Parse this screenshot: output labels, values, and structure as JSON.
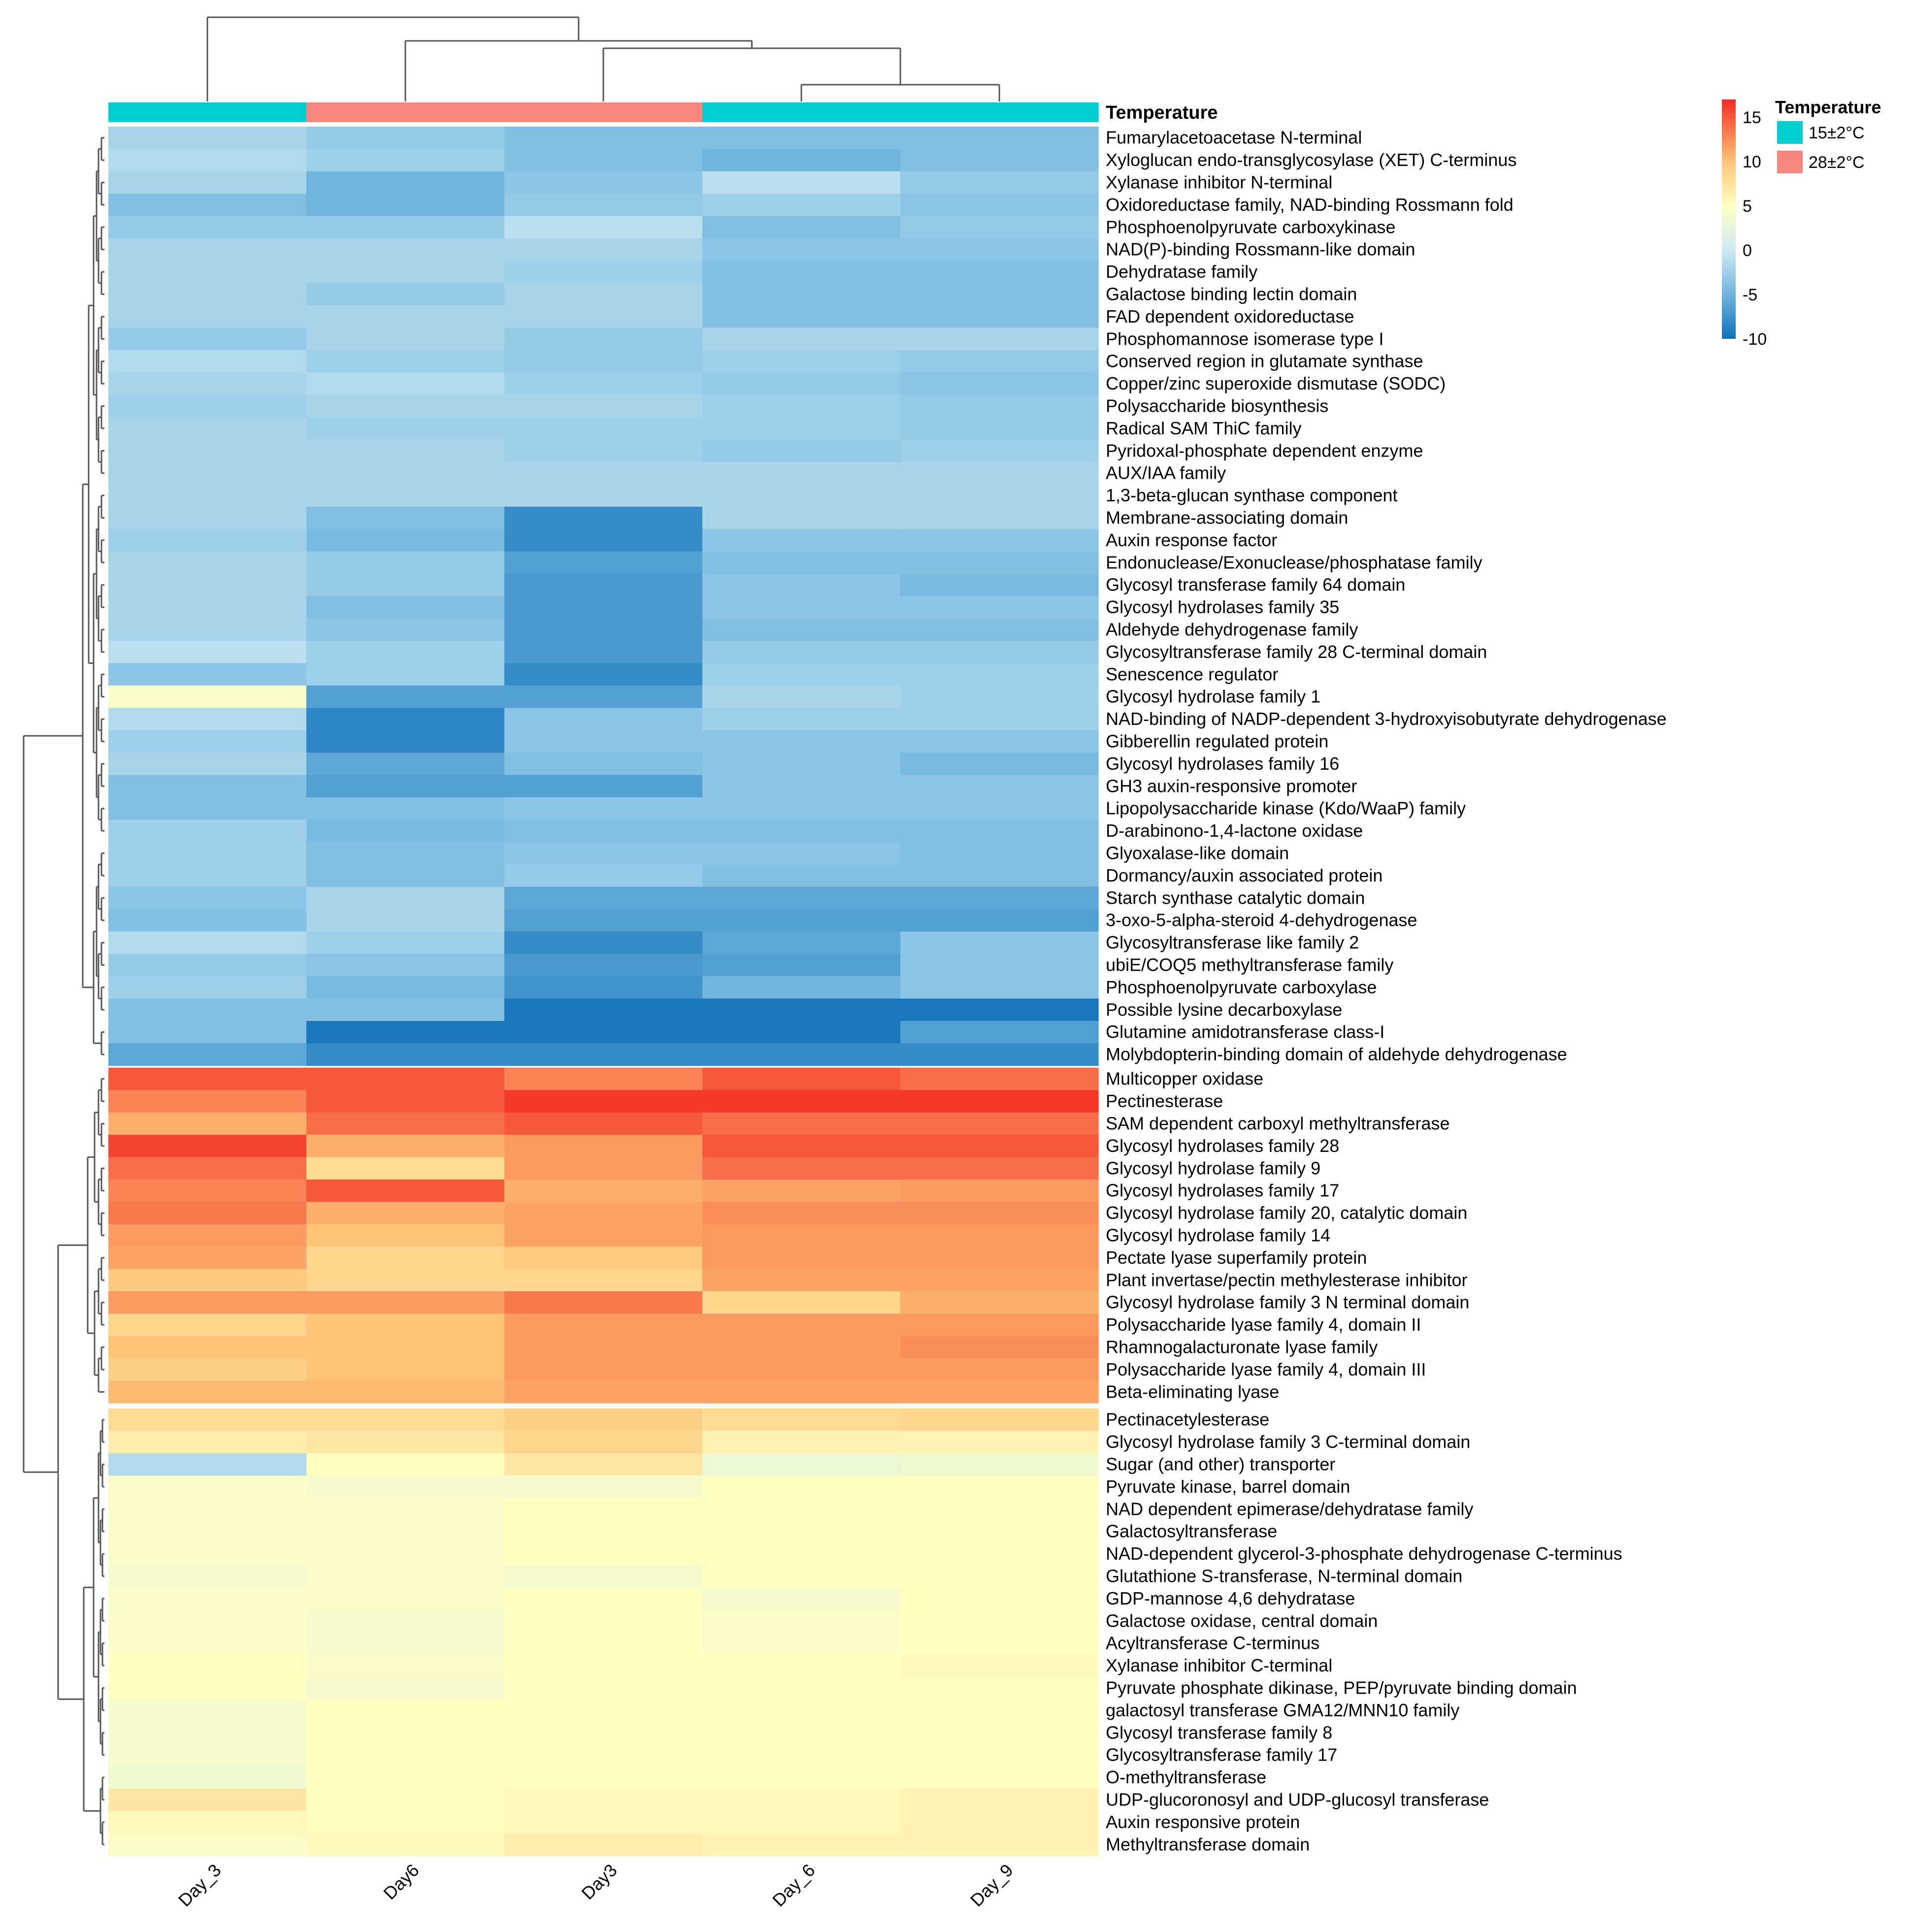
{
  "chart_data": {
    "type": "heatmap",
    "title": "",
    "columns": [
      "Day_3",
      "Day6",
      "Day3",
      "Day_6",
      "Day_9"
    ],
    "annotation": {
      "title": "Temperature",
      "values": [
        "15±2°C",
        "28±2°C",
        "28±2°C",
        "15±2°C",
        "15±2°C"
      ],
      "legend": [
        {
          "label": "15±2°C",
          "color": "#00CED1"
        },
        {
          "label": "28±2°C",
          "color": "#F8877F"
        }
      ]
    },
    "color_scale": {
      "min": -10,
      "max": 17,
      "ticks": [
        15,
        10,
        5,
        0,
        -5,
        -10
      ],
      "stops": [
        {
          "v": -10,
          "color": "#1070B8"
        },
        {
          "v": -5,
          "color": "#6FB5DE"
        },
        {
          "v": 0,
          "color": "#CFEAF4"
        },
        {
          "v": 5,
          "color": "#FFFFC2"
        },
        {
          "v": 10,
          "color": "#FDC478"
        },
        {
          "v": 17,
          "color": "#F32D24"
        }
      ]
    },
    "row_groups": [
      {
        "rows": [
          {
            "label": "Fumarylacetoacetase N-terminal",
            "values": [
              -2,
              -3,
              -4,
              -4,
              -4
            ]
          },
          {
            "label": "Xyloglucan endo-transglycosylase (XET) C-terminus",
            "values": [
              -1.5,
              -2.5,
              -4,
              -5,
              -4
            ]
          },
          {
            "label": "Xylanase inhibitor N-terminal",
            "values": [
              -2,
              -5,
              -3.5,
              -1,
              -3
            ]
          },
          {
            "label": "Oxidoreductase family, NAD-binding Rossmann fold",
            "values": [
              -4,
              -5,
              -3,
              -2.5,
              -3.5
            ]
          },
          {
            "label": "Phosphoenolpyruvate carboxykinase",
            "values": [
              -3,
              -3,
              -1,
              -4,
              -3
            ]
          },
          {
            "label": "NAD(P)-binding Rossmann-like domain",
            "values": [
              -2,
              -2,
              -2,
              -3.5,
              -3.5
            ]
          },
          {
            "label": "Dehydratase family",
            "values": [
              -2,
              -2,
              -2.5,
              -4,
              -4
            ]
          },
          {
            "label": "Galactose binding lectin domain",
            "values": [
              -2,
              -3,
              -2,
              -4,
              -4
            ]
          },
          {
            "label": "FAD dependent oxidoreductase",
            "values": [
              -2,
              -2,
              -2,
              -4,
              -4
            ]
          },
          {
            "label": "Phosphomannose isomerase type I",
            "values": [
              -3,
              -2,
              -3,
              -2,
              -2
            ]
          },
          {
            "label": "Conserved region in glutamate synthase",
            "values": [
              -1.5,
              -2.5,
              -3,
              -2.5,
              -3
            ]
          },
          {
            "label": "Copper/zinc superoxide dismutase (SODC)",
            "values": [
              -2,
              -1.5,
              -2.5,
              -3,
              -3.5
            ]
          },
          {
            "label": "Polysaccharide biosynthesis",
            "values": [
              -2.5,
              -2,
              -2,
              -2.5,
              -3
            ]
          },
          {
            "label": "Radical SAM ThiC family",
            "values": [
              -2,
              -2.5,
              -2.5,
              -2.5,
              -3
            ]
          },
          {
            "label": "Pyridoxal-phosphate dependent enzyme",
            "values": [
              -2,
              -2,
              -2.5,
              -3,
              -2.5
            ]
          },
          {
            "label": "AUX/IAA family",
            "values": [
              -2,
              -2,
              -2,
              -2,
              -2
            ]
          },
          {
            "label": "1,3-beta-glucan synthase component",
            "values": [
              -2,
              -2,
              -2,
              -2,
              -2
            ]
          },
          {
            "label": "Membrane-associating domain",
            "values": [
              -2,
              -4,
              -8,
              -2,
              -2
            ]
          },
          {
            "label": "Auxin response factor",
            "values": [
              -2.5,
              -4.5,
              -8,
              -3.5,
              -3.5
            ]
          },
          {
            "label": "Endonuclease/Exonuclease/phosphatase family",
            "values": [
              -2,
              -3,
              -6.5,
              -4,
              -4
            ]
          },
          {
            "label": "Glycosyl transferase family 64 domain",
            "values": [
              -2,
              -3,
              -7,
              -3.5,
              -4.5
            ]
          },
          {
            "label": "Glycosyl hydrolases family 35",
            "values": [
              -2,
              -4,
              -7,
              -3.5,
              -3.5
            ]
          },
          {
            "label": "Aldehyde dehydrogenase family",
            "values": [
              -2,
              -3.5,
              -7,
              -4,
              -4
            ]
          },
          {
            "label": "Glycosyltransferase family 28 C-terminal domain",
            "values": [
              -1,
              -2.5,
              -7,
              -3,
              -3
            ]
          },
          {
            "label": "Senescence regulator",
            "values": [
              -3.5,
              -2.5,
              -8,
              -2.5,
              -2.5
            ]
          },
          {
            "label": "Glycosyl hydrolase family 1",
            "values": [
              4.5,
              -6.5,
              -6.5,
              -2,
              -2.5
            ]
          },
          {
            "label": "NAD-binding of NADP-dependent 3-hydroxyisobutyrate dehydrogenase",
            "values": [
              -1.5,
              -8.5,
              -3.5,
              -2.5,
              -2.5
            ]
          },
          {
            "label": "Gibberellin regulated protein",
            "values": [
              -2.5,
              -8.5,
              -3.5,
              -3.5,
              -3.5
            ]
          },
          {
            "label": "Glycosyl hydrolases family 16",
            "values": [
              -2,
              -6,
              -4,
              -3.5,
              -4.5
            ]
          },
          {
            "label": "GH3 auxin-responsive promoter",
            "values": [
              -4,
              -6.5,
              -6.5,
              -3.5,
              -3.5
            ]
          },
          {
            "label": "Lipopolysaccharide kinase (Kdo/WaaP) family",
            "values": [
              -4,
              -4,
              -3.5,
              -3.5,
              -3.5
            ]
          },
          {
            "label": "D-arabinono-1,4-lactone oxidase",
            "values": [
              -2.5,
              -4.5,
              -4,
              -4,
              -4
            ]
          },
          {
            "label": "Glyoxalase-like domain",
            "values": [
              -2.5,
              -4,
              -3.5,
              -3.5,
              -4
            ]
          },
          {
            "label": "Dormancy/auxin associated protein",
            "values": [
              -2.5,
              -4,
              -3,
              -4,
              -4
            ]
          },
          {
            "label": "Starch synthase catalytic domain",
            "values": [
              -3.5,
              -2,
              -6,
              -6,
              -6
            ]
          },
          {
            "label": "3-oxo-5-alpha-steroid 4-dehydrogenase",
            "values": [
              -4,
              -2,
              -6.5,
              -6.5,
              -6.5
            ]
          },
          {
            "label": "Glycosyltransferase like family 2",
            "values": [
              -1.5,
              -2.5,
              -8,
              -6,
              -3.5
            ]
          },
          {
            "label": "ubiE/COQ5 methyltransferase family",
            "values": [
              -3,
              -3.5,
              -7,
              -6.5,
              -3.5
            ]
          },
          {
            "label": "Phosphoenolpyruvate carboxylase",
            "values": [
              -2.5,
              -4.5,
              -7.5,
              -5,
              -3.5
            ]
          },
          {
            "label": "Possible lysine decarboxylase",
            "values": [
              -4,
              -4,
              -9.5,
              -9.5,
              -9.5
            ]
          },
          {
            "label": "Glutamine amidotransferase class-I",
            "values": [
              -4,
              -9.5,
              -9.5,
              -9.5,
              -6.5
            ]
          },
          {
            "label": "Molybdopterin-binding domain of aldehyde dehydrogenase",
            "values": [
              -6,
              -8,
              -8,
              -8,
              -8
            ]
          }
        ]
      },
      {
        "rows": [
          {
            "label": "Multicopper oxidase",
            "values": [
              15,
              15,
              13,
              15,
              14
            ]
          },
          {
            "label": "Pectinesterase",
            "values": [
              13,
              15,
              16.5,
              16.5,
              16.5
            ]
          },
          {
            "label": "SAM dependent carboxyl methyltransferase",
            "values": [
              11,
              14,
              15,
              14,
              14
            ]
          },
          {
            "label": "Glycosyl hydrolases family 28",
            "values": [
              16,
              11,
              12,
              15,
              15
            ]
          },
          {
            "label": "Glycosyl hydrolase family 9",
            "values": [
              14,
              8,
              12,
              14,
              14
            ]
          },
          {
            "label": "Glycosyl hydrolases family 17",
            "values": [
              13,
              15,
              11,
              11.5,
              12
            ]
          },
          {
            "label": "Glycosyl hydrolase family 20, catalytic domain",
            "values": [
              13.5,
              11,
              11.5,
              12.5,
              12.5
            ]
          },
          {
            "label": "Glycosyl hydrolase family 14",
            "values": [
              12,
              10,
              11.5,
              12,
              12
            ]
          },
          {
            "label": "Pectate lyase superfamily protein",
            "values": [
              11.5,
              8.5,
              9.5,
              12,
              12
            ]
          },
          {
            "label": "Plant invertase/pectin methylesterase inhibitor",
            "values": [
              9.5,
              8.5,
              8.5,
              11.5,
              11.5
            ]
          },
          {
            "label": "Glycosyl hydrolase family 3 N terminal domain",
            "values": [
              12,
              12,
              13.5,
              8.5,
              11
            ]
          },
          {
            "label": "Polysaccharide lyase family 4, domain II",
            "values": [
              8.5,
              10,
              12,
              12,
              12
            ]
          },
          {
            "label": "Rhamnogalacturonate lyase family",
            "values": [
              10,
              10,
              12,
              12,
              12.5
            ]
          },
          {
            "label": "Polysaccharide lyase family 4, domain III",
            "values": [
              9,
              10,
              12,
              12,
              12
            ]
          },
          {
            "label": "Beta-eliminating lyase",
            "values": [
              10.5,
              10.5,
              11.5,
              11.5,
              11.5
            ]
          }
        ]
      },
      {
        "rows": [
          {
            "label": "Pectinacetylesterase",
            "values": [
              8,
              8,
              9,
              8,
              8.5
            ]
          },
          {
            "label": "Glycosyl hydrolase family 3 C-terminal domain",
            "values": [
              6.5,
              7,
              8.5,
              6,
              6
            ]
          },
          {
            "label": "Sugar (and other) transporter",
            "values": [
              -1.5,
              5,
              7,
              3,
              3.5
            ]
          },
          {
            "label": "Pyruvate kinase, barrel domain",
            "values": [
              4.5,
              4,
              4,
              5,
              5
            ]
          },
          {
            "label": "NAD dependent epimerase/dehydratase family",
            "values": [
              4.5,
              4.5,
              5,
              5,
              5
            ]
          },
          {
            "label": "Galactosyltransferase",
            "values": [
              4.5,
              4.5,
              5,
              5,
              5
            ]
          },
          {
            "label": "NAD-dependent glycerol-3-phosphate dehydrogenase C-terminus",
            "values": [
              4.5,
              4.5,
              5,
              5,
              5
            ]
          },
          {
            "label": "Glutathione S-transferase, N-terminal domain",
            "values": [
              4,
              4.5,
              4,
              5,
              5
            ]
          },
          {
            "label": "GDP-mannose 4,6 dehydratase",
            "values": [
              4.5,
              4.5,
              5,
              4,
              5
            ]
          },
          {
            "label": "Galactose oxidase, central domain",
            "values": [
              4.5,
              4,
              5,
              4.5,
              5
            ]
          },
          {
            "label": "Acyltransferase C-terminus",
            "values": [
              4.5,
              4,
              5,
              4.5,
              5
            ]
          },
          {
            "label": "Xylanase inhibitor C-terminal",
            "values": [
              5,
              4.5,
              5,
              5,
              5.5
            ]
          },
          {
            "label": "Pyruvate phosphate dikinase, PEP/pyruvate binding domain",
            "values": [
              5,
              4,
              5,
              5,
              5
            ]
          },
          {
            "label": "galactosyl transferase GMA12/MNN10 family",
            "values": [
              4,
              5,
              5,
              5,
              5
            ]
          },
          {
            "label": "Glycosyl transferase family 8",
            "values": [
              4,
              5,
              5,
              5,
              5
            ]
          },
          {
            "label": "Glycosyltransferase family 17",
            "values": [
              4,
              5,
              5,
              5,
              5
            ]
          },
          {
            "label": "O-methyltransferase",
            "values": [
              3.5,
              5,
              5,
              5,
              5
            ]
          },
          {
            "label": "UDP-glucoronosyl and UDP-glucosyl transferase",
            "values": [
              7,
              5,
              5.5,
              5.5,
              6
            ]
          },
          {
            "label": "Auxin responsive protein",
            "values": [
              5.5,
              5,
              5.5,
              5.5,
              6
            ]
          },
          {
            "label": "Methyltransferase domain",
            "values": [
              4.5,
              5.5,
              6.5,
              6,
              6
            ]
          }
        ]
      }
    ]
  }
}
